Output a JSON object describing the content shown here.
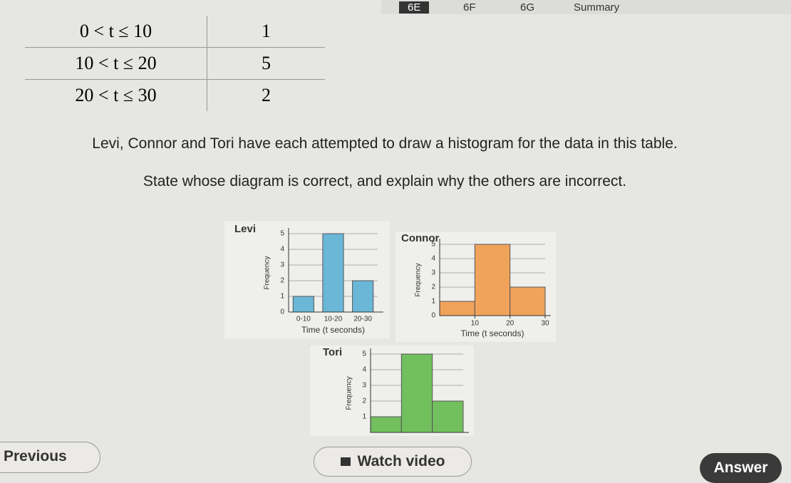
{
  "tabs": [
    "6E",
    "6F",
    "6G",
    "Summary"
  ],
  "table": {
    "rows": [
      [
        "0 < t ≤ 10",
        "1"
      ],
      [
        "10 < t ≤ 20",
        "5"
      ],
      [
        "20 < t ≤ 30",
        "2"
      ]
    ]
  },
  "question": [
    "Levi, Connor and Tori have each attempted to draw a histogram for the data in this table.",
    "State whose diagram is correct, and explain why the others are incorrect."
  ],
  "diagrams": [
    {
      "name": "Levi",
      "y_label": "Frequency",
      "x_label": "Time (t seconds)",
      "color": "#6ab7d8",
      "categories": [
        "0-10",
        "10-20",
        "20-30"
      ],
      "values": [
        1,
        5,
        2
      ],
      "ylim": [
        0,
        5
      ],
      "yticks": [
        0,
        1,
        2,
        3,
        4,
        5
      ]
    },
    {
      "name": "Connor",
      "y_label": "Frequency",
      "x_label": "Time (t seconds)",
      "color": "#f0a35a",
      "values": [
        1,
        5,
        2
      ],
      "xlim": [
        0,
        30
      ],
      "xticks": [
        10,
        20,
        30
      ],
      "ylim": [
        0,
        5
      ],
      "yticks": [
        0,
        1,
        2,
        3,
        4,
        5
      ]
    },
    {
      "name": "Tori",
      "y_label": "Frequency",
      "color": "#72bf5e",
      "values": [
        1,
        5,
        2
      ],
      "ylim": [
        0,
        5
      ],
      "yticks": [
        1,
        2,
        3,
        4,
        5
      ]
    }
  ],
  "buttons": {
    "previous": "Previous",
    "watch": "Watch video",
    "answer": "Answer"
  }
}
